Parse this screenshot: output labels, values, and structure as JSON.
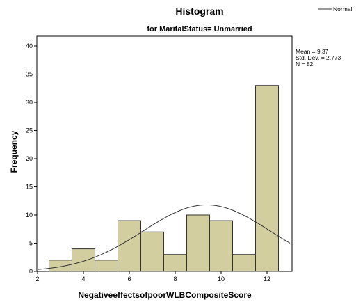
{
  "chart_data": {
    "type": "bar",
    "title": "Histogram",
    "subtitle": "for MaritalStatus= Unmarried",
    "xlabel": "NegativeeffectsofpoorWLBCompositeScore",
    "ylabel": "Frequency",
    "xlim": [
      2,
      13
    ],
    "ylim": [
      0,
      42
    ],
    "x_ticks": [
      "2",
      "4",
      "6",
      "8",
      "10",
      "12"
    ],
    "y_ticks": [
      "0",
      "5",
      "10",
      "15",
      "20",
      "25",
      "30",
      "35",
      "40"
    ],
    "bins": [
      {
        "start": 2.5,
        "end": 3.5,
        "count": 2
      },
      {
        "start": 3.5,
        "end": 4.5,
        "count": 4
      },
      {
        "start": 4.5,
        "end": 5.5,
        "count": 2
      },
      {
        "start": 5.5,
        "end": 6.5,
        "count": 9
      },
      {
        "start": 6.5,
        "end": 7.5,
        "count": 7
      },
      {
        "start": 7.5,
        "end": 8.5,
        "count": 3
      },
      {
        "start": 8.5,
        "end": 9.5,
        "count": 10
      },
      {
        "start": 9.5,
        "end": 10.5,
        "count": 9
      },
      {
        "start": 10.5,
        "end": 11.5,
        "count": 3
      },
      {
        "start": 11.5,
        "end": 12.5,
        "count": 33
      }
    ],
    "stats": [
      "Mean = 9.37",
      "Std. Dev. = 2.773",
      "N = 82"
    ],
    "normal_curve": {
      "mean": 9.37,
      "std": 2.773,
      "n": 82,
      "bin_width": 1
    },
    "legend": {
      "label": "Normal",
      "placement": "top-right"
    },
    "colors": {
      "bar_fill": "#d3cea0",
      "bar_stroke": "#333333",
      "curve": "#333333",
      "axis": "#000000"
    },
    "grid": false
  }
}
